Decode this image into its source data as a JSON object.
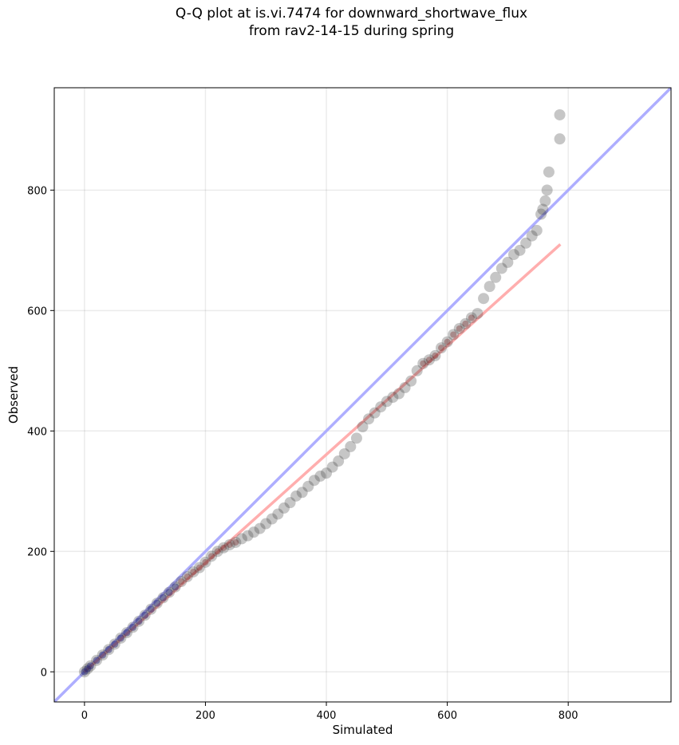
{
  "chart_data": {
    "type": "scatter",
    "title": "Q-Q plot at is.vi.7474 for downward_shortwave_flux\nfrom rav2-14-15 during spring",
    "xlabel": "Simulated",
    "ylabel": "Observed",
    "xlim": [
      -50,
      970
    ],
    "ylim": [
      -50,
      970
    ],
    "xticks": [
      0,
      200,
      400,
      600,
      800
    ],
    "yticks": [
      0,
      200,
      400,
      600,
      800
    ],
    "grid": true,
    "colors": {
      "points": "#333333",
      "one_to_one_line": "#aaaaff",
      "fit_line": "#ffaaaa",
      "low_range_points": "#1a1a6e",
      "mid_range_points": "#6e1a1a"
    },
    "reference_lines": [
      {
        "kind": "one-to-one",
        "x": [
          -50,
          970
        ],
        "y": [
          -50,
          970
        ]
      },
      {
        "kind": "fit",
        "x": [
          0,
          787
        ],
        "y": [
          0,
          710
        ]
      }
    ],
    "series": [
      {
        "x": [
          0,
          5,
          10,
          20,
          30,
          40,
          50,
          60,
          70,
          80,
          90,
          100,
          110,
          120,
          130,
          140,
          150,
          160,
          170,
          180,
          190,
          200,
          210,
          220,
          230,
          240,
          250,
          260,
          270,
          280,
          290,
          300,
          310,
          320,
          330,
          340,
          350,
          360,
          370,
          380,
          390,
          400,
          410,
          420,
          430,
          440,
          450,
          460,
          470,
          480,
          490,
          500,
          510,
          520,
          530,
          540,
          550,
          560,
          570,
          580,
          590,
          600,
          610,
          620,
          630,
          640,
          650,
          660,
          670,
          680,
          690,
          700,
          710,
          720,
          730,
          740,
          748,
          755,
          758,
          762,
          765,
          768,
          786,
          786
        ],
        "y": [
          0,
          5,
          10,
          19,
          28,
          37,
          46,
          56,
          65,
          74,
          84,
          94,
          104,
          114,
          123,
          132,
          141,
          150,
          158,
          166,
          173,
          182,
          192,
          200,
          206,
          211,
          215,
          221,
          226,
          232,
          238,
          246,
          254,
          262,
          272,
          281,
          292,
          298,
          308,
          318,
          325,
          330,
          340,
          350,
          362,
          374,
          388,
          407,
          420,
          430,
          440,
          449,
          456,
          462,
          472,
          483,
          500,
          512,
          518,
          525,
          538,
          548,
          560,
          570,
          578,
          588,
          595,
          620,
          640,
          655,
          670,
          680,
          693,
          700,
          712,
          724,
          733,
          760,
          768,
          782,
          800,
          830,
          885,
          925
        ]
      }
    ]
  }
}
